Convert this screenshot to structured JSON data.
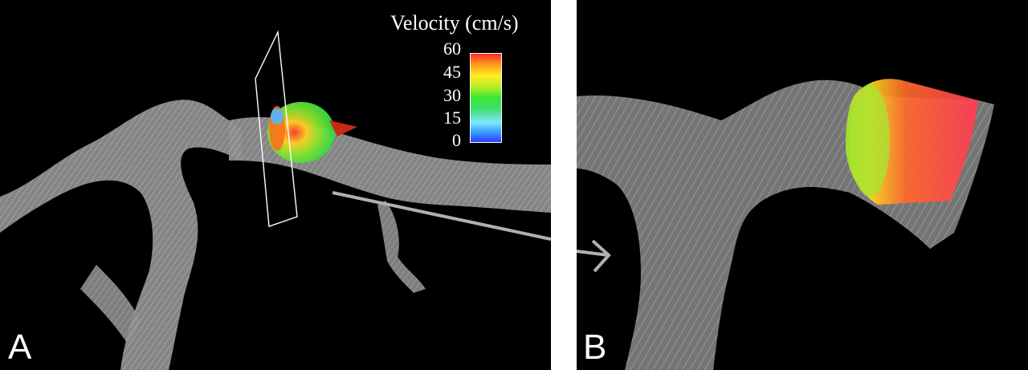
{
  "panels": {
    "a": {
      "label": "A"
    },
    "b": {
      "label": "B"
    }
  },
  "legend": {
    "title": "Velocity (cm/s)",
    "ticks": [
      "60",
      "45",
      "30",
      "15",
      "0"
    ],
    "colors": [
      "#2b3dff",
      "#3aa3ff",
      "#39e639",
      "#ffee22",
      "#ff2a2a"
    ]
  },
  "colors": {
    "vessel": "#9a9a9a",
    "background": "#000000",
    "arrow": "#b0b0b0"
  }
}
